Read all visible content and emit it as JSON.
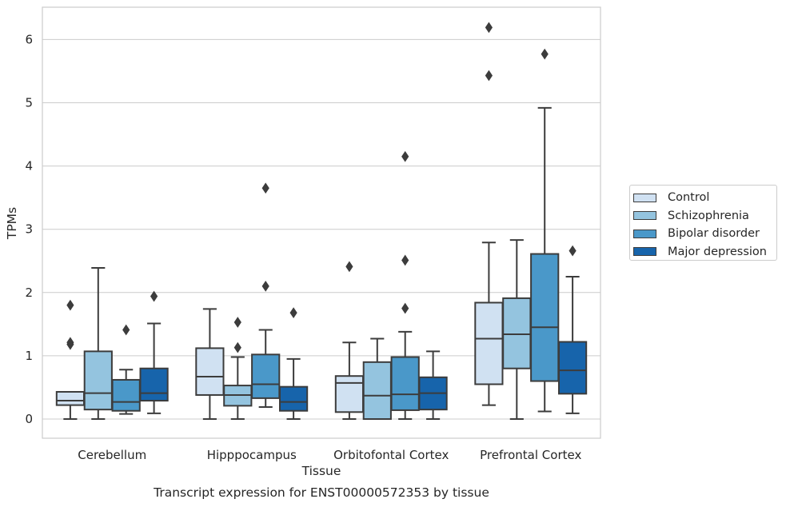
{
  "chart_data": {
    "type": "box",
    "title": "",
    "xlabel": "Tissue",
    "ylabel": "TPMs",
    "caption": "Transcript expression for ENST00000572353 by tissue",
    "ylim": [
      -0.3,
      6.5
    ],
    "yticks": [
      0,
      1,
      2,
      3,
      4,
      5,
      6
    ],
    "grid": true,
    "legend_position": "right",
    "categories": [
      "Cerebellum",
      "Hipppocampus",
      "Orbitofontal Cortex",
      "Prefrontal Cortex"
    ],
    "series": [
      {
        "name": "Control",
        "color": "#d0e1f2",
        "boxes": [
          {
            "whisker_low": 0.0,
            "q1": 0.22,
            "median": 0.29,
            "q3": 0.43,
            "whisker_high": 0.43,
            "outliers": [
              1.18,
              1.21,
              1.8
            ]
          },
          {
            "whisker_low": 0.0,
            "q1": 0.38,
            "median": 0.67,
            "q3": 1.12,
            "whisker_high": 1.74,
            "outliers": []
          },
          {
            "whisker_low": 0.0,
            "q1": 0.11,
            "median": 0.57,
            "q3": 0.68,
            "whisker_high": 1.21,
            "outliers": [
              2.41
            ]
          },
          {
            "whisker_low": 0.22,
            "q1": 0.55,
            "median": 1.27,
            "q3": 1.84,
            "whisker_high": 2.79,
            "outliers": [
              5.43,
              6.19
            ]
          }
        ]
      },
      {
        "name": "Schizophrenia",
        "color": "#94c4df",
        "boxes": [
          {
            "whisker_low": 0.0,
            "q1": 0.15,
            "median": 0.41,
            "q3": 1.07,
            "whisker_high": 2.39,
            "outliers": []
          },
          {
            "whisker_low": 0.0,
            "q1": 0.21,
            "median": 0.38,
            "q3": 0.53,
            "whisker_high": 0.98,
            "outliers": [
              1.13,
              1.53
            ]
          },
          {
            "whisker_low": 0.0,
            "q1": 0.0,
            "median": 0.37,
            "q3": 0.9,
            "whisker_high": 1.27,
            "outliers": []
          },
          {
            "whisker_low": 0.0,
            "q1": 0.8,
            "median": 1.34,
            "q3": 1.91,
            "whisker_high": 2.83,
            "outliers": []
          }
        ]
      },
      {
        "name": "Bipolar disorder",
        "color": "#4a98c9",
        "boxes": [
          {
            "whisker_low": 0.08,
            "q1": 0.13,
            "median": 0.27,
            "q3": 0.62,
            "whisker_high": 0.78,
            "outliers": [
              1.41
            ]
          },
          {
            "whisker_low": 0.19,
            "q1": 0.33,
            "median": 0.55,
            "q3": 1.02,
            "whisker_high": 1.41,
            "outliers": [
              2.1,
              3.65
            ]
          },
          {
            "whisker_low": 0.0,
            "q1": 0.14,
            "median": 0.39,
            "q3": 0.98,
            "whisker_high": 1.38,
            "outliers": [
              1.75,
              2.51,
              4.15
            ]
          },
          {
            "whisker_low": 0.12,
            "q1": 0.6,
            "median": 1.45,
            "q3": 2.61,
            "whisker_high": 4.92,
            "outliers": [
              5.77
            ]
          }
        ]
      },
      {
        "name": "Major depression",
        "color": "#1764ab",
        "boxes": [
          {
            "whisker_low": 0.09,
            "q1": 0.29,
            "median": 0.41,
            "q3": 0.8,
            "whisker_high": 1.51,
            "outliers": [
              1.94
            ]
          },
          {
            "whisker_low": 0.0,
            "q1": 0.13,
            "median": 0.27,
            "q3": 0.51,
            "whisker_high": 0.95,
            "outliers": [
              1.68
            ]
          },
          {
            "whisker_low": 0.0,
            "q1": 0.15,
            "median": 0.41,
            "q3": 0.66,
            "whisker_high": 1.07,
            "outliers": []
          },
          {
            "whisker_low": 0.09,
            "q1": 0.4,
            "median": 0.77,
            "q3": 1.22,
            "whisker_high": 2.25,
            "outliers": [
              2.66
            ]
          }
        ]
      }
    ]
  }
}
